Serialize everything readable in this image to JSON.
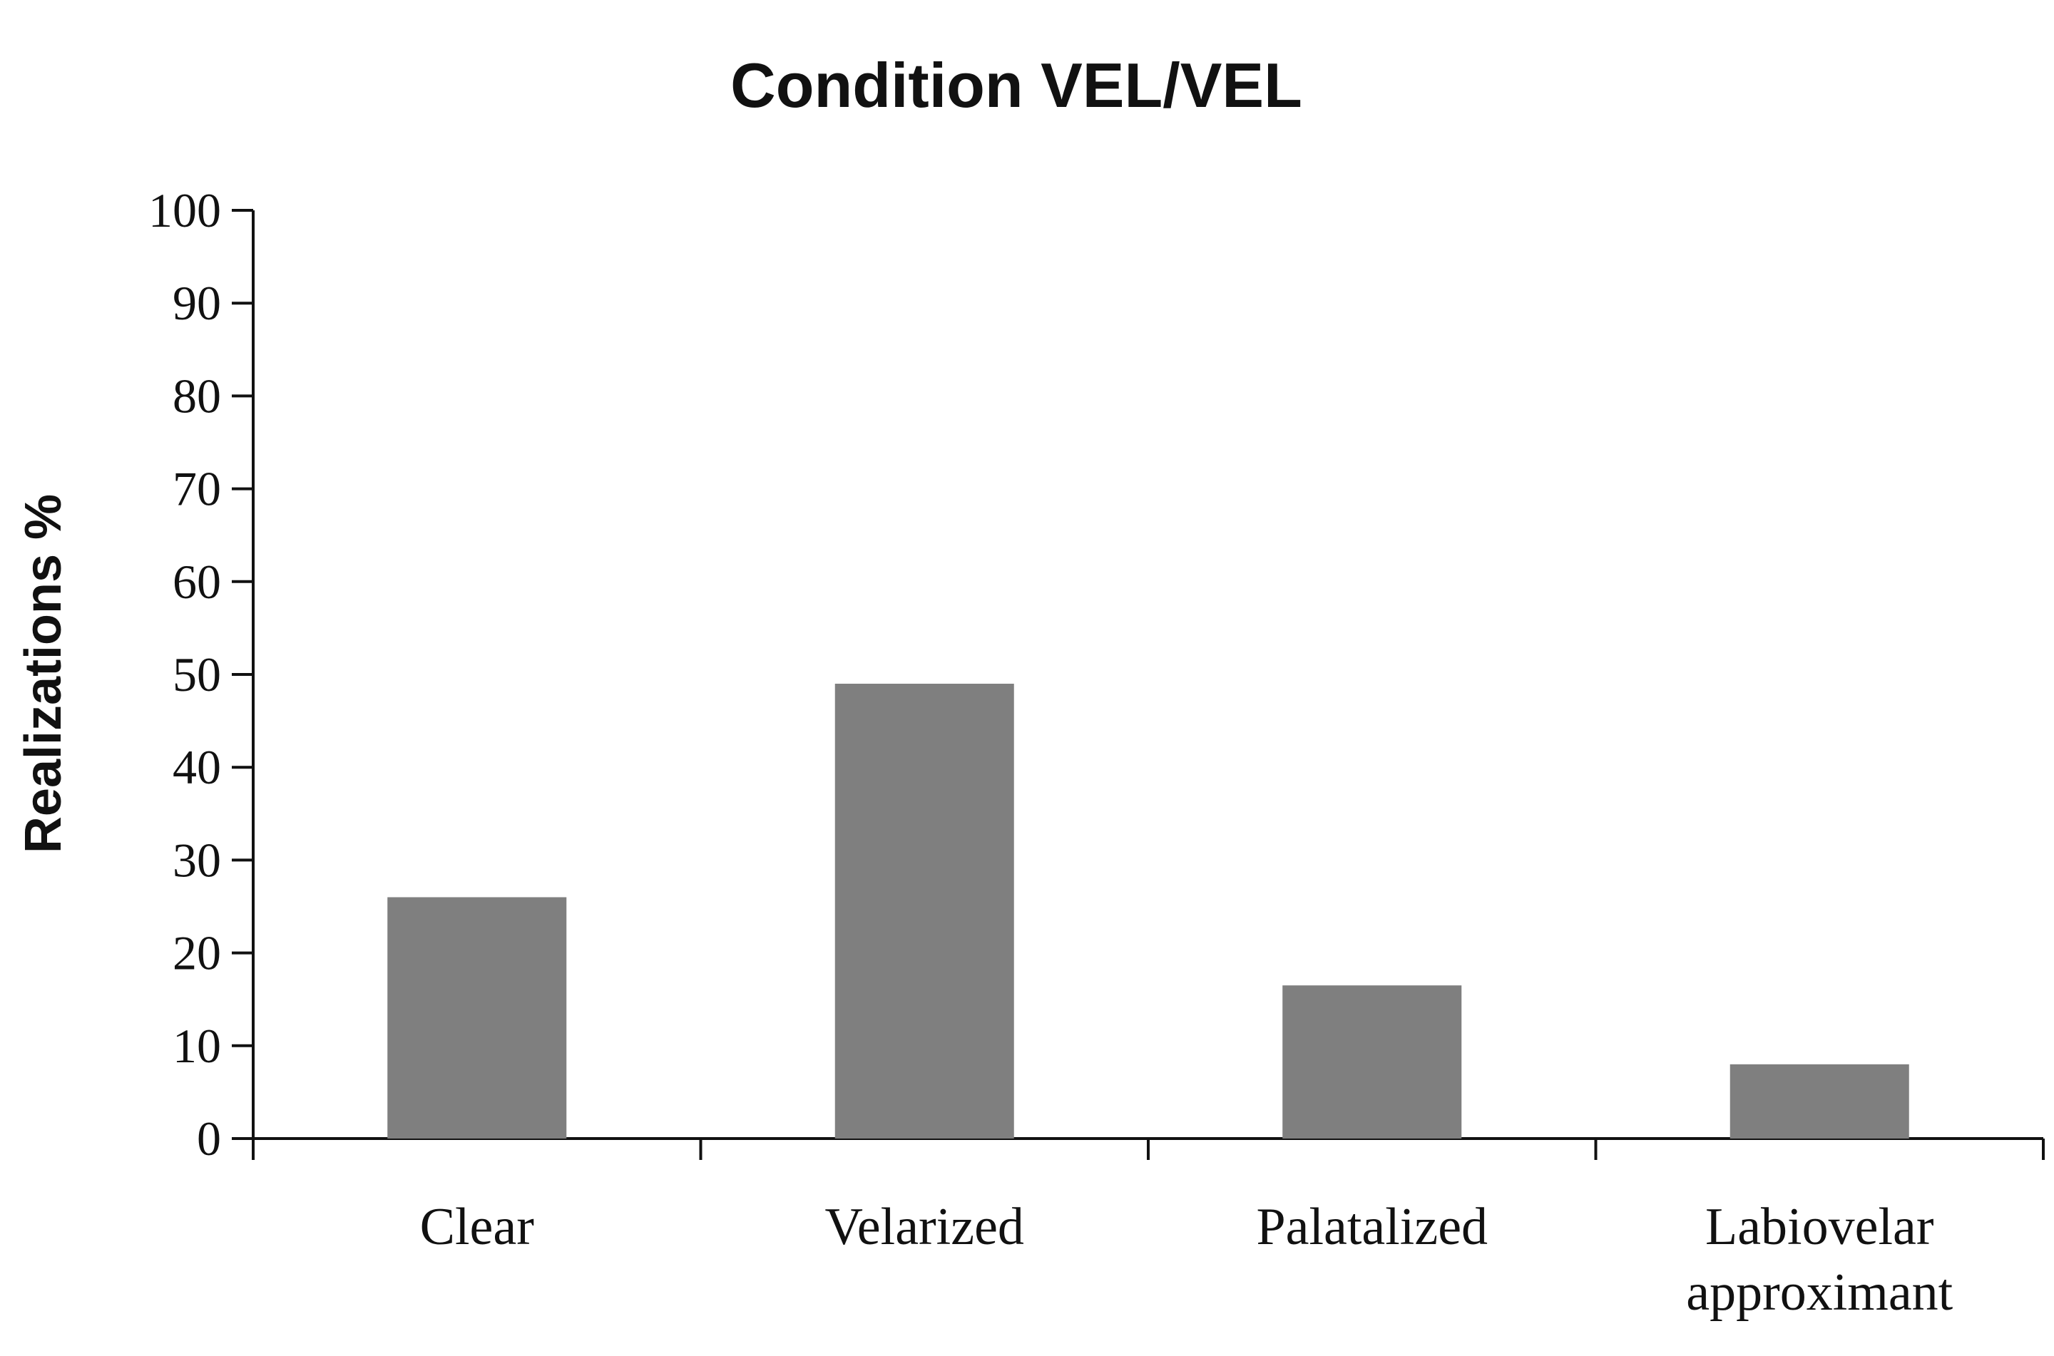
{
  "chart_data": {
    "type": "bar",
    "title": "Condition VEL/VEL",
    "xlabel": "",
    "ylabel": "Realizations %",
    "ylim": [
      0,
      100
    ],
    "yticks": [
      0,
      10,
      20,
      30,
      40,
      50,
      60,
      70,
      80,
      90,
      100
    ],
    "categories": [
      [
        "Clear"
      ],
      [
        "Velarized"
      ],
      [
        "Palatalized"
      ],
      [
        "Labiovelar",
        "approximant"
      ]
    ],
    "values": [
      26,
      49,
      16.5,
      8
    ],
    "bar_color": "#7f7f7f",
    "grid": false,
    "legend": "none"
  }
}
